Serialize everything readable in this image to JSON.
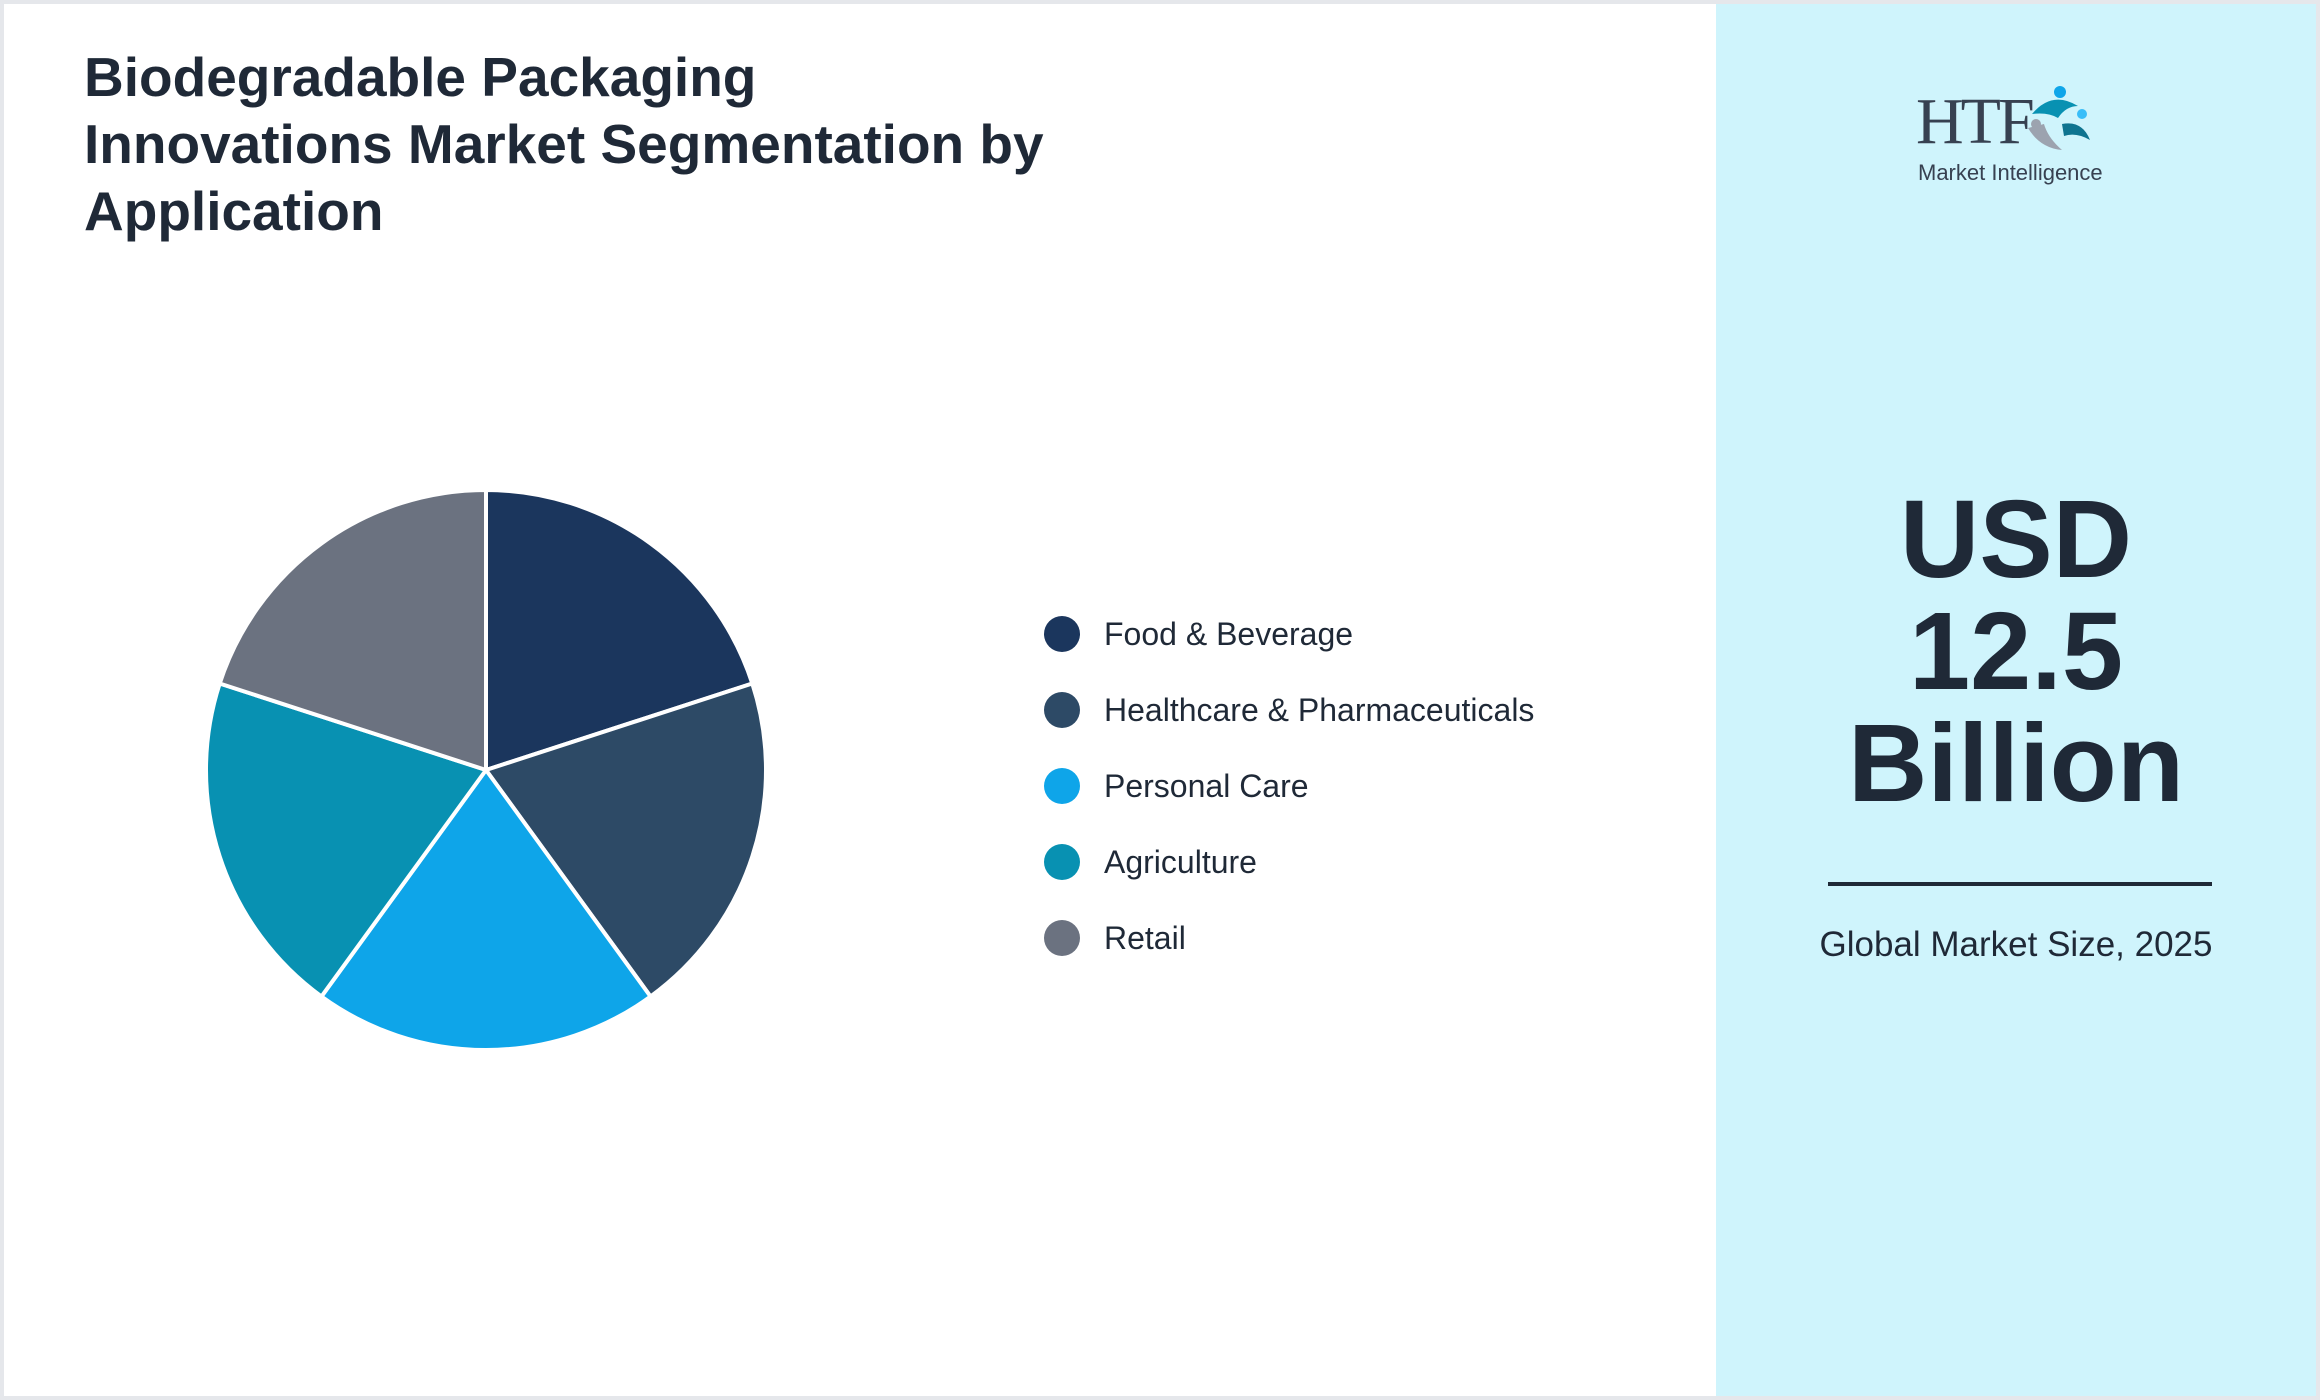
{
  "title": "Biodegradable Packaging Innovations Market Segmentation by Application",
  "chart_data": {
    "type": "pie",
    "categories": [
      "Food & Beverage",
      "Healthcare & Pharmaceuticals",
      "Personal Care",
      "Agriculture",
      "Retail"
    ],
    "values": [
      20,
      20,
      20,
      20,
      20
    ],
    "colors": [
      "#1b365d",
      "#2d4a66",
      "#0ea5e9",
      "#0891b2",
      "#6b7280"
    ],
    "legend_position": "right"
  },
  "logo": {
    "brand": "HTF",
    "subtitle": "Market Intelligence"
  },
  "market": {
    "value_lines": [
      "USD",
      "12.5",
      "Billion"
    ],
    "caption": "Global Market Size, 2025"
  }
}
